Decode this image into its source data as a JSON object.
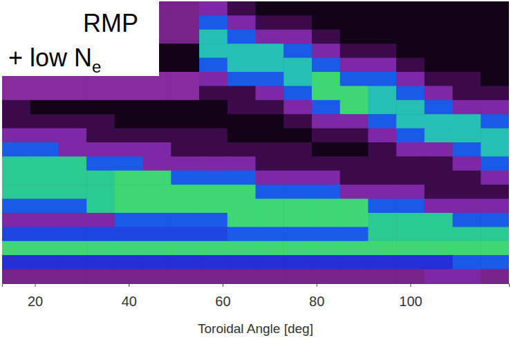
{
  "chart_data": {
    "type": "heatmap",
    "x_label": "Toroidal Angle [deg]",
    "annotations": [
      {
        "text": "RMP"
      },
      {
        "text": "+ low N",
        "subscript": "e"
      }
    ],
    "xlim": [
      13,
      121
    ],
    "xticks": [
      20,
      40,
      60,
      80,
      100
    ],
    "ylim": [
      0,
      20
    ],
    "tick_labels": "x",
    "zlim": [
      0,
      1
    ],
    "x": [
      16,
      22,
      28,
      34,
      40,
      46,
      52,
      58,
      64,
      70,
      76,
      82,
      88,
      94,
      100,
      106,
      112,
      118
    ],
    "y": [
      0.5,
      1.5,
      2.5,
      3.5,
      4.5,
      5.5,
      6.5,
      7.5,
      8.5,
      9.5,
      10.5,
      11.5,
      12.5,
      13.5,
      14.5,
      15.5,
      16.5,
      17.5,
      18.5,
      19.5
    ],
    "z": [
      [
        0.05,
        0.05,
        0.05,
        0.05,
        0.05,
        0.25,
        0.25,
        0.3,
        0.15,
        0.05,
        0.05,
        0.05,
        0.05,
        0.05,
        0.05,
        0.05,
        0.05,
        0.05
      ],
      [
        0.05,
        0.05,
        0.05,
        0.05,
        0.05,
        0.25,
        0.25,
        0.6,
        0.3,
        0.15,
        0.15,
        0.05,
        0.05,
        0.05,
        0.05,
        0.05,
        0.05,
        0.05
      ],
      [
        0.05,
        0.05,
        0.05,
        0.05,
        0.05,
        0.25,
        0.25,
        0.8,
        0.6,
        0.3,
        0.3,
        0.15,
        0.05,
        0.05,
        0.05,
        0.05,
        0.05,
        0.05
      ],
      [
        0.05,
        0.05,
        0.05,
        0.05,
        0.05,
        0.05,
        0.05,
        0.8,
        0.8,
        0.8,
        0.6,
        0.3,
        0.15,
        0.15,
        0.05,
        0.05,
        0.05,
        0.05
      ],
      [
        0.05,
        0.05,
        0.05,
        0.05,
        0.05,
        0.05,
        0.05,
        0.6,
        0.8,
        0.8,
        0.8,
        0.6,
        0.3,
        0.3,
        0.15,
        0.05,
        0.05,
        0.05
      ],
      [
        0.28,
        0.28,
        0.28,
        0.28,
        0.28,
        0.28,
        0.28,
        0.3,
        0.6,
        0.6,
        0.8,
        0.9,
        0.6,
        0.6,
        0.3,
        0.15,
        0.15,
        0.05
      ],
      [
        0.28,
        0.28,
        0.28,
        0.28,
        0.28,
        0.28,
        0.28,
        0.15,
        0.15,
        0.3,
        0.6,
        0.9,
        0.9,
        0.8,
        0.6,
        0.3,
        0.15,
        0.15
      ],
      [
        0.15,
        0.05,
        0.05,
        0.05,
        0.05,
        0.05,
        0.05,
        0.05,
        0.15,
        0.15,
        0.3,
        0.6,
        0.9,
        0.8,
        0.8,
        0.6,
        0.3,
        0.3
      ],
      [
        0.15,
        0.15,
        0.15,
        0.15,
        0.05,
        0.05,
        0.05,
        0.05,
        0.05,
        0.05,
        0.15,
        0.3,
        0.3,
        0.6,
        0.8,
        0.8,
        0.8,
        0.6
      ],
      [
        0.3,
        0.3,
        0.3,
        0.15,
        0.15,
        0.15,
        0.15,
        0.15,
        0.05,
        0.05,
        0.05,
        0.15,
        0.15,
        0.3,
        0.6,
        0.8,
        0.8,
        0.8
      ],
      [
        0.6,
        0.6,
        0.3,
        0.3,
        0.3,
        0.3,
        0.15,
        0.15,
        0.15,
        0.15,
        0.15,
        0.05,
        0.05,
        0.15,
        0.3,
        0.3,
        0.6,
        0.8
      ],
      [
        0.85,
        0.85,
        0.85,
        0.6,
        0.6,
        0.3,
        0.3,
        0.3,
        0.3,
        0.15,
        0.15,
        0.15,
        0.15,
        0.15,
        0.15,
        0.15,
        0.3,
        0.6
      ],
      [
        0.85,
        0.85,
        0.85,
        0.85,
        0.9,
        0.9,
        0.6,
        0.6,
        0.6,
        0.3,
        0.3,
        0.3,
        0.15,
        0.15,
        0.15,
        0.15,
        0.15,
        0.3
      ],
      [
        0.85,
        0.85,
        0.85,
        0.85,
        0.9,
        0.9,
        0.9,
        0.9,
        0.9,
        0.6,
        0.6,
        0.6,
        0.3,
        0.3,
        0.3,
        0.15,
        0.15,
        0.15
      ],
      [
        0.6,
        0.6,
        0.6,
        0.85,
        0.9,
        0.9,
        0.9,
        0.9,
        0.9,
        0.9,
        0.9,
        0.9,
        0.9,
        0.6,
        0.6,
        0.3,
        0.3,
        0.3
      ],
      [
        0.3,
        0.3,
        0.3,
        0.3,
        0.6,
        0.6,
        0.6,
        0.6,
        0.9,
        0.9,
        0.9,
        0.9,
        0.9,
        0.85,
        0.85,
        0.85,
        0.6,
        0.6
      ],
      [
        0.55,
        0.55,
        0.55,
        0.55,
        0.55,
        0.55,
        0.55,
        0.55,
        0.6,
        0.6,
        0.6,
        0.6,
        0.6,
        0.85,
        0.85,
        0.85,
        0.85,
        0.85
      ],
      [
        0.9,
        0.9,
        0.9,
        0.9,
        0.9,
        0.9,
        0.9,
        0.9,
        0.9,
        0.9,
        0.9,
        0.9,
        0.9,
        0.9,
        0.9,
        0.9,
        0.9,
        0.9
      ],
      [
        0.5,
        0.5,
        0.5,
        0.5,
        0.5,
        0.5,
        0.5,
        0.5,
        0.5,
        0.5,
        0.5,
        0.5,
        0.5,
        0.5,
        0.5,
        0.5,
        0.6,
        0.6
      ],
      [
        0.25,
        0.25,
        0.25,
        0.25,
        0.25,
        0.25,
        0.25,
        0.25,
        0.25,
        0.25,
        0.25,
        0.25,
        0.25,
        0.25,
        0.25,
        0.3,
        0.3,
        0.25
      ]
    ]
  }
}
